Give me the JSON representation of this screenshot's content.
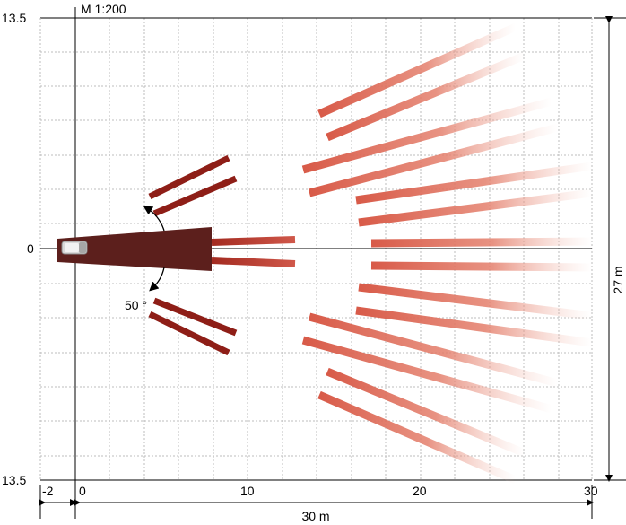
{
  "diagram": {
    "scale_label": "M 1:200",
    "y_top_label": "13.5",
    "y_zero_label": "0",
    "y_bottom_label": "13.5",
    "x_tick_labels": [
      "-2",
      "0",
      "10",
      "20",
      "30"
    ],
    "x_span_label": "30 m",
    "y_span_label": "27 m",
    "angle_label": "50 °"
  },
  "colors": {
    "grid": "#bdbdbd",
    "axis": "#000000",
    "camera_body": "#5c1f1c",
    "near_beam": "#8b1d16",
    "mid_beam": "#c9483a",
    "far_beam": "#e07a66"
  }
}
